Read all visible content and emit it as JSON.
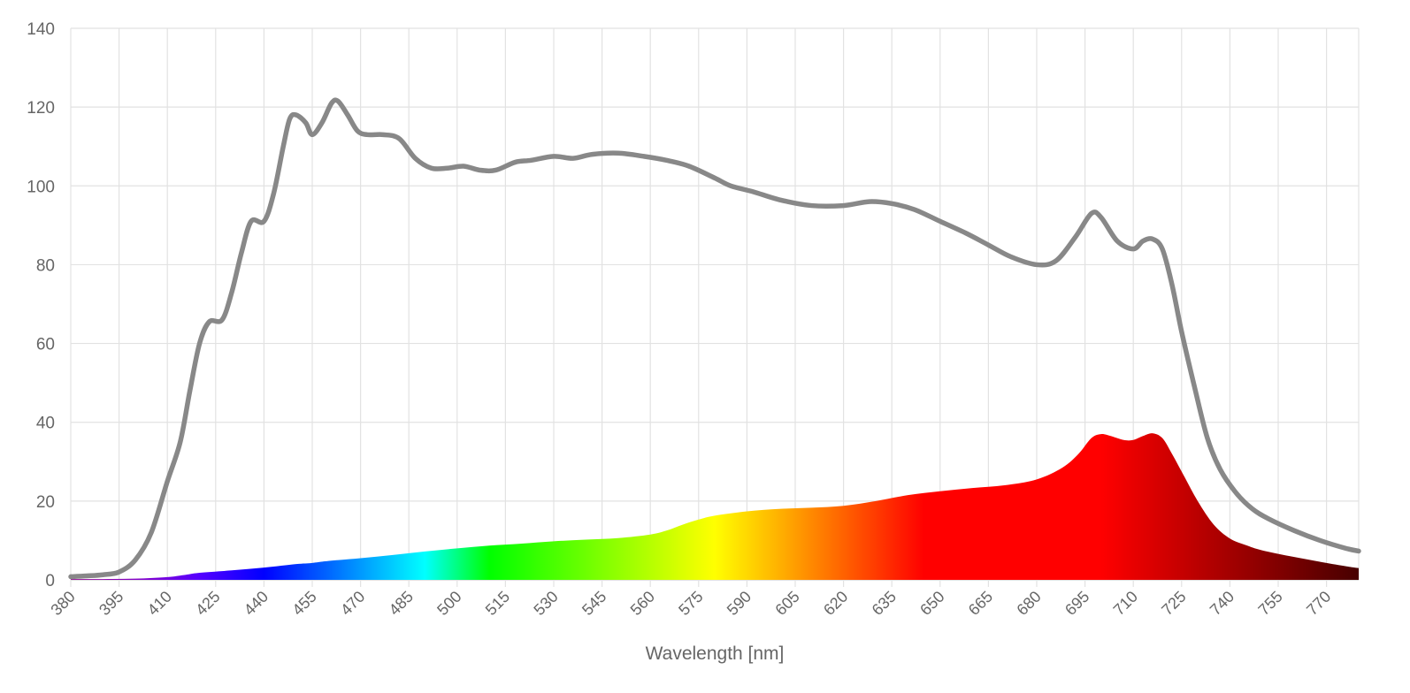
{
  "chart_data": {
    "type": "area",
    "xlabel": "Wavelength [nm]",
    "ylabel": "",
    "xlim": [
      380,
      780
    ],
    "ylim": [
      0,
      140
    ],
    "x_ticks": [
      380,
      395,
      410,
      425,
      440,
      455,
      470,
      485,
      500,
      515,
      530,
      545,
      560,
      575,
      590,
      605,
      620,
      635,
      650,
      665,
      680,
      695,
      710,
      725,
      740,
      755,
      770
    ],
    "y_ticks": [
      0,
      20,
      40,
      60,
      80,
      100,
      120,
      140
    ],
    "grid": true,
    "series": [
      {
        "color": "#888888",
        "style": "line",
        "points": [
          [
            380,
            0.8
          ],
          [
            385,
            1
          ],
          [
            390,
            1.3
          ],
          [
            395,
            2
          ],
          [
            400,
            5
          ],
          [
            405,
            12
          ],
          [
            410,
            25
          ],
          [
            414,
            35
          ],
          [
            417,
            48
          ],
          [
            420,
            60
          ],
          [
            423,
            65.5
          ],
          [
            427,
            66
          ],
          [
            430,
            73
          ],
          [
            433,
            83
          ],
          [
            436,
            91
          ],
          [
            440,
            91
          ],
          [
            443,
            98
          ],
          [
            446,
            110
          ],
          [
            448,
            117
          ],
          [
            450,
            118
          ],
          [
            453,
            116
          ],
          [
            455,
            113
          ],
          [
            458,
            116
          ],
          [
            461,
            121
          ],
          [
            463,
            121.5
          ],
          [
            466,
            118
          ],
          [
            469,
            114
          ],
          [
            472,
            113
          ],
          [
            477,
            113
          ],
          [
            482,
            112
          ],
          [
            487,
            107
          ],
          [
            492,
            104.5
          ],
          [
            497,
            104.5
          ],
          [
            502,
            105
          ],
          [
            507,
            104
          ],
          [
            512,
            104
          ],
          [
            518,
            106
          ],
          [
            523,
            106.5
          ],
          [
            530,
            107.5
          ],
          [
            536,
            107
          ],
          [
            542,
            108
          ],
          [
            550,
            108.3
          ],
          [
            558,
            107.5
          ],
          [
            565,
            106.5
          ],
          [
            572,
            105
          ],
          [
            580,
            102
          ],
          [
            585,
            100
          ],
          [
            592,
            98.5
          ],
          [
            600,
            96.5
          ],
          [
            610,
            95
          ],
          [
            620,
            95
          ],
          [
            628,
            96
          ],
          [
            635,
            95.5
          ],
          [
            642,
            94
          ],
          [
            650,
            91
          ],
          [
            658,
            88
          ],
          [
            665,
            85
          ],
          [
            672,
            82
          ],
          [
            680,
            80
          ],
          [
            686,
            81
          ],
          [
            692,
            87
          ],
          [
            697,
            93
          ],
          [
            700,
            92
          ],
          [
            705,
            86
          ],
          [
            710,
            84
          ],
          [
            713,
            86
          ],
          [
            716,
            86.5
          ],
          [
            719,
            84
          ],
          [
            722,
            75
          ],
          [
            725,
            63
          ],
          [
            729,
            49
          ],
          [
            733,
            36
          ],
          [
            737,
            28
          ],
          [
            742,
            22
          ],
          [
            747,
            18
          ],
          [
            752,
            15.5
          ],
          [
            760,
            12.5
          ],
          [
            768,
            10
          ],
          [
            776,
            8
          ],
          [
            780,
            7.3
          ]
        ]
      },
      {
        "color": "spectrum",
        "style": "area",
        "points": [
          [
            380,
            0.2
          ],
          [
            390,
            0.2
          ],
          [
            400,
            0.3
          ],
          [
            410,
            0.7
          ],
          [
            415,
            1.2
          ],
          [
            420,
            1.8
          ],
          [
            430,
            2.4
          ],
          [
            440,
            3.1
          ],
          [
            450,
            4
          ],
          [
            455,
            4.3
          ],
          [
            460,
            4.8
          ],
          [
            470,
            5.5
          ],
          [
            480,
            6.3
          ],
          [
            490,
            7.2
          ],
          [
            500,
            8
          ],
          [
            510,
            8.7
          ],
          [
            520,
            9.2
          ],
          [
            530,
            9.8
          ],
          [
            540,
            10.2
          ],
          [
            550,
            10.6
          ],
          [
            560,
            11.5
          ],
          [
            565,
            12.5
          ],
          [
            570,
            14
          ],
          [
            575,
            15.3
          ],
          [
            580,
            16.3
          ],
          [
            590,
            17.4
          ],
          [
            600,
            18
          ],
          [
            610,
            18.3
          ],
          [
            620,
            18.8
          ],
          [
            630,
            20
          ],
          [
            640,
            21.5
          ],
          [
            650,
            22.5
          ],
          [
            660,
            23.3
          ],
          [
            670,
            24
          ],
          [
            680,
            25.5
          ],
          [
            688,
            28.5
          ],
          [
            693,
            32
          ],
          [
            697,
            36
          ],
          [
            700,
            37
          ],
          [
            703,
            36.5
          ],
          [
            707,
            35.5
          ],
          [
            710,
            35.5
          ],
          [
            713,
            36.5
          ],
          [
            716,
            37.2
          ],
          [
            719,
            36
          ],
          [
            722,
            32
          ],
          [
            726,
            26
          ],
          [
            730,
            20
          ],
          [
            735,
            14
          ],
          [
            740,
            10.5
          ],
          [
            745,
            8.8
          ],
          [
            750,
            7.5
          ],
          [
            760,
            5.8
          ],
          [
            770,
            4.3
          ],
          [
            778,
            3.2
          ],
          [
            780,
            3
          ]
        ]
      }
    ]
  }
}
